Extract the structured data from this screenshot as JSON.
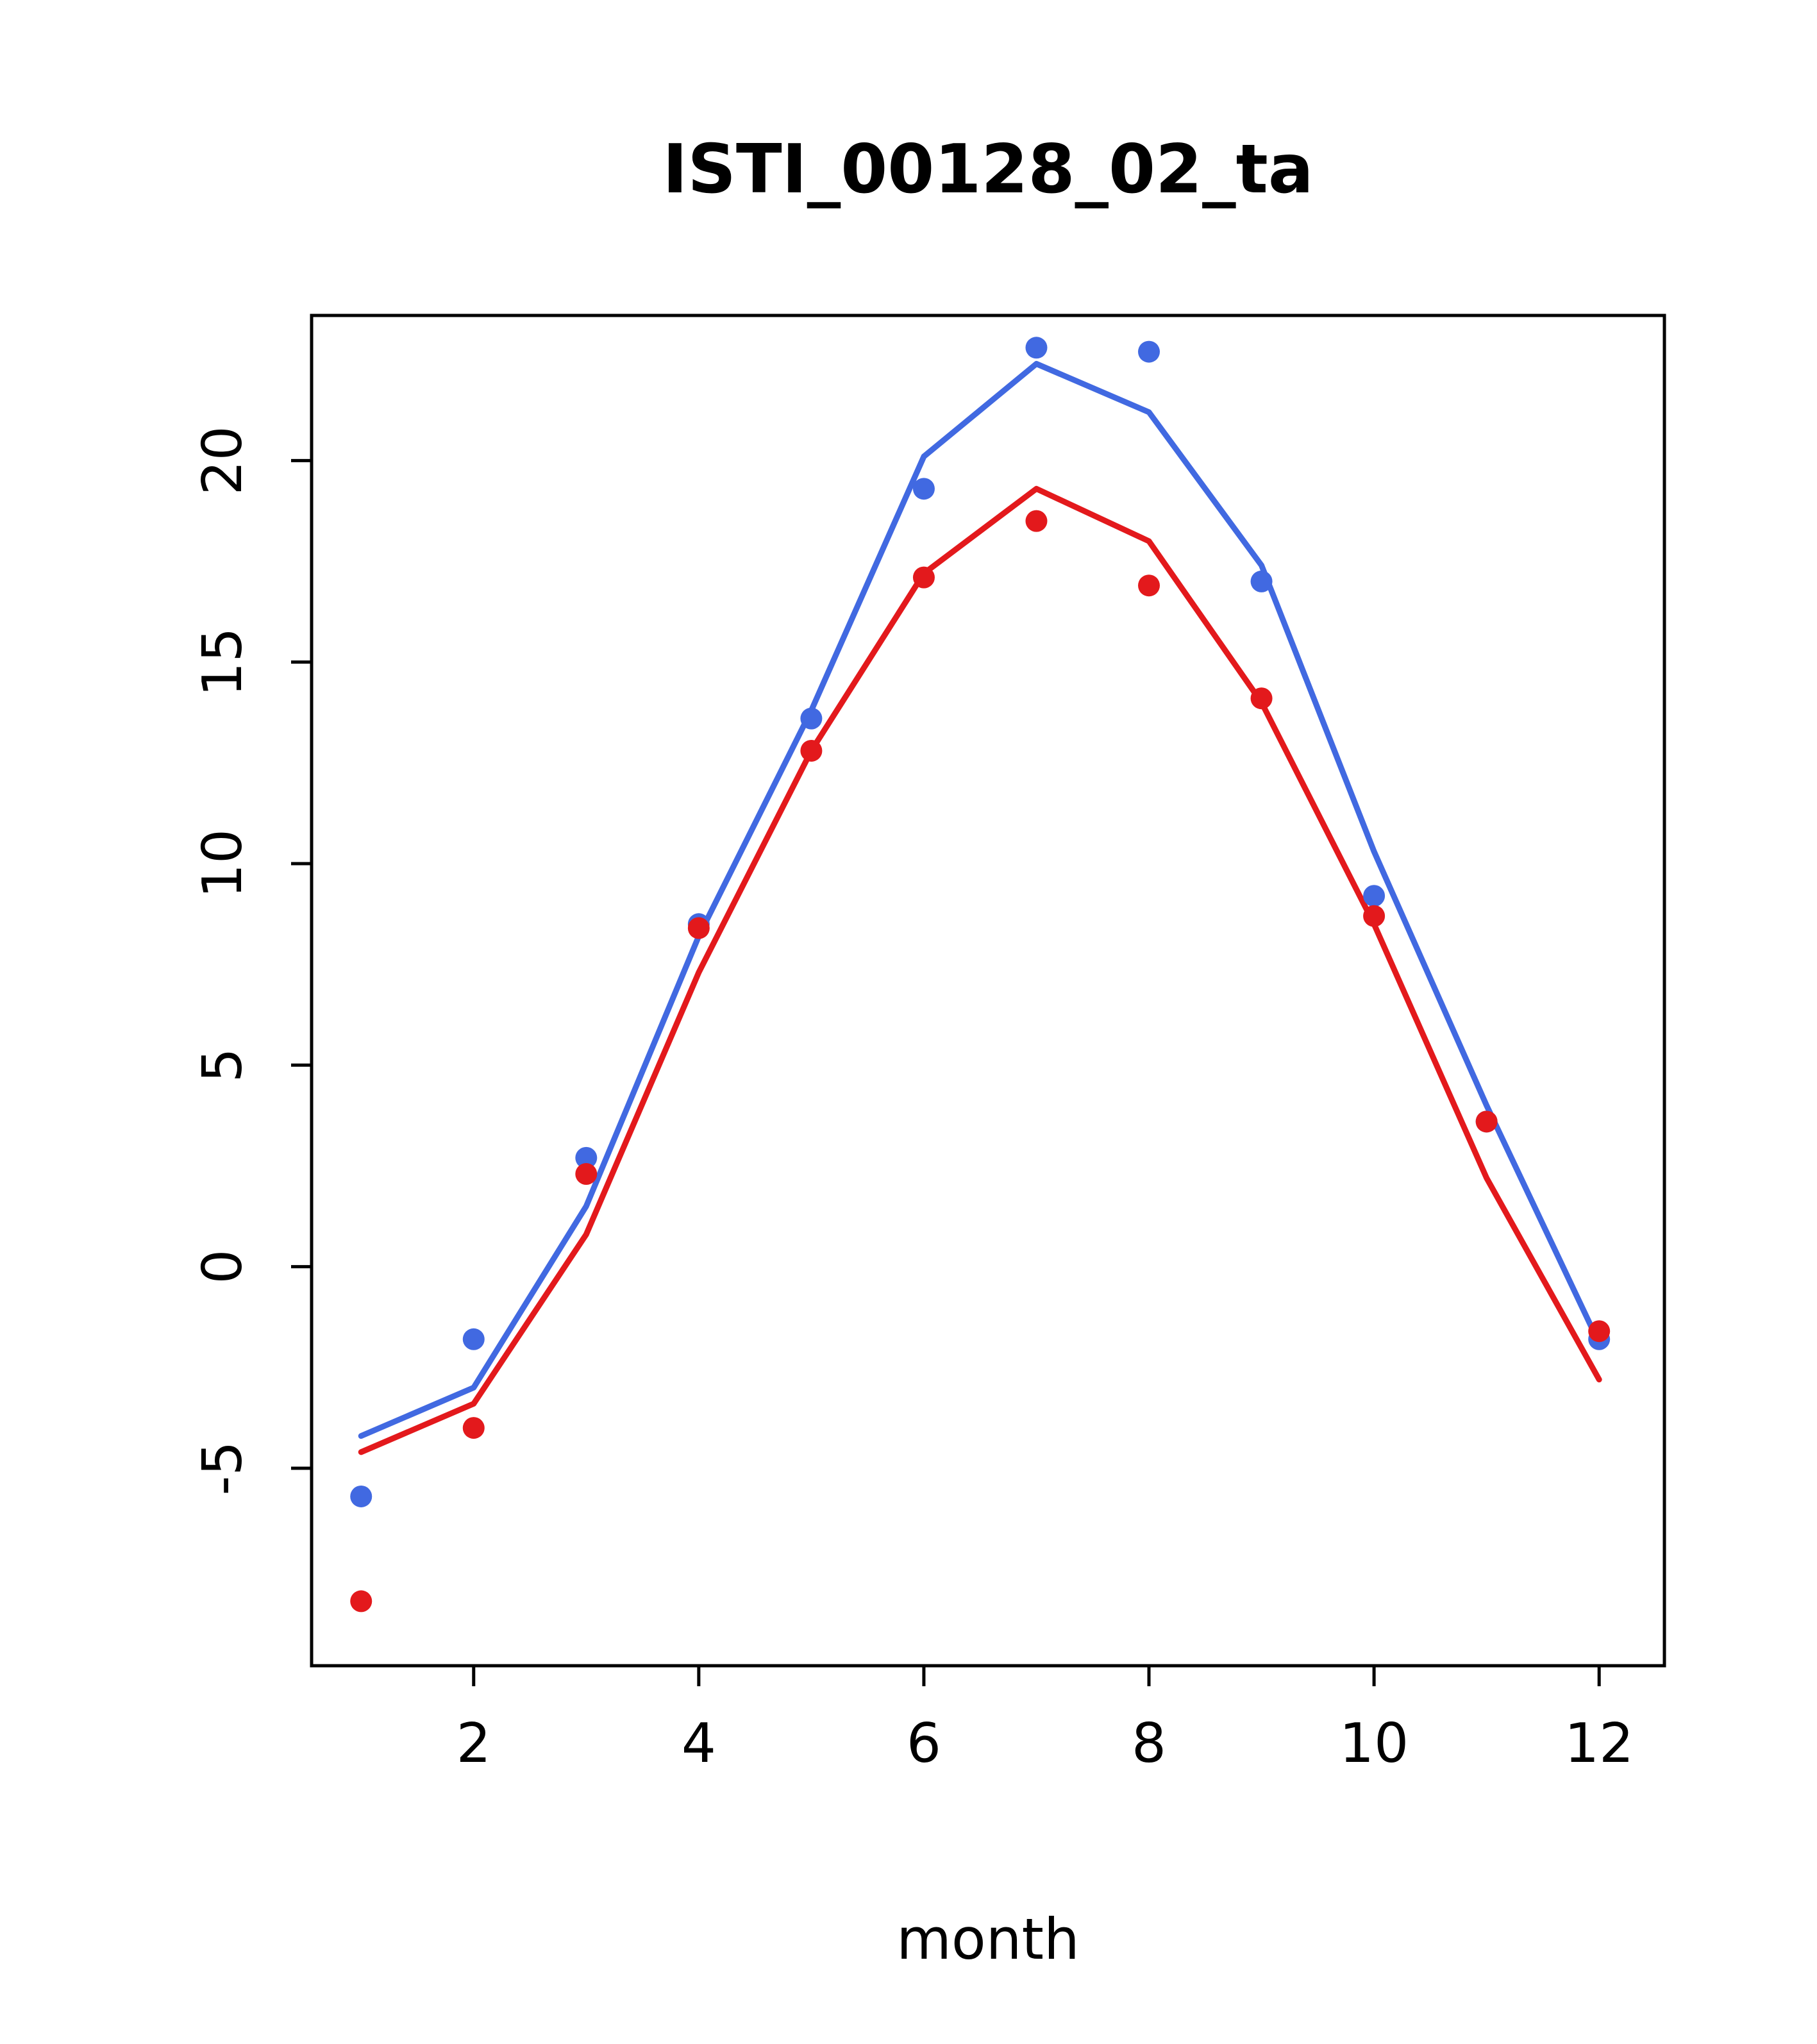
{
  "page": {
    "background": "#ffffff",
    "frame_color": "#000000"
  },
  "chart_data": {
    "type": "line",
    "title": "ISTI_00128_02_ta",
    "xlabel": "month",
    "ylabel": "",
    "x": [
      1,
      2,
      3,
      4,
      5,
      6,
      7,
      8,
      9,
      10,
      11,
      12
    ],
    "xticks": [
      2,
      4,
      6,
      8,
      10,
      12
    ],
    "yticks": [
      -5,
      0,
      5,
      10,
      15,
      20
    ],
    "xlim": [
      0.56,
      12.58
    ],
    "ylim": [
      -9.9,
      23.6
    ],
    "grid": false,
    "legend": "none",
    "series": [
      {
        "name": "blue-line",
        "style": "line",
        "color": "#4169E1",
        "values": [
          -4.2,
          -3.0,
          1.5,
          8.2,
          13.8,
          20.1,
          22.4,
          21.2,
          17.4,
          10.3,
          4.0,
          -1.9
        ]
      },
      {
        "name": "red-line",
        "style": "line",
        "color": "#E3191C",
        "values": [
          -4.6,
          -3.4,
          0.8,
          7.3,
          12.8,
          17.2,
          19.3,
          18.0,
          14.0,
          8.5,
          2.2,
          -2.8
        ]
      },
      {
        "name": "blue-points",
        "style": "points",
        "color": "#4169E1",
        "values": [
          -5.7,
          -1.8,
          2.7,
          8.5,
          13.6,
          19.3,
          22.8,
          22.7,
          17.0,
          9.2,
          3.6,
          -1.8
        ]
      },
      {
        "name": "red-points",
        "style": "points",
        "color": "#E3191C",
        "values": [
          -8.3,
          -4.0,
          2.3,
          8.4,
          12.8,
          17.1,
          18.5,
          16.9,
          14.1,
          8.7,
          3.6,
          -1.6
        ]
      }
    ]
  }
}
